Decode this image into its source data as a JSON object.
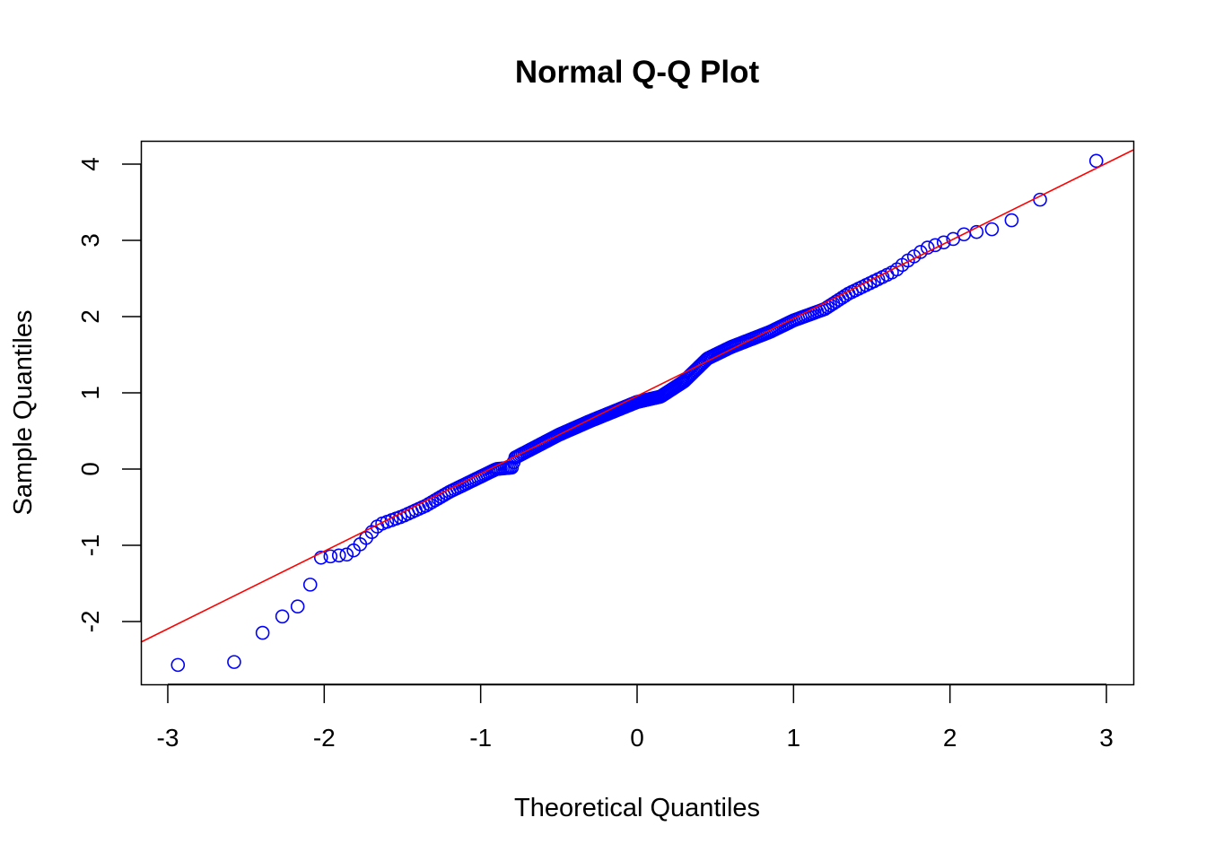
{
  "chart_data": {
    "type": "scatter",
    "title": "Normal Q-Q Plot",
    "xlabel": "Theoretical Quantiles",
    "ylabel": "Sample Quantiles",
    "xlim": [
      -3.172,
      3.172
    ],
    "ylim": [
      -2.824,
      4.306
    ],
    "xticks": [
      -3,
      -2,
      -1,
      0,
      1,
      2,
      3
    ],
    "xtick_labels": [
      "-3",
      "-2",
      "-1",
      "0",
      "1",
      "2",
      "3"
    ],
    "yticks": [
      -2,
      -1,
      0,
      1,
      2,
      3,
      4
    ],
    "ytick_labels": [
      "-2",
      "-1",
      "0",
      "1",
      "2",
      "3",
      "4"
    ],
    "n_points": 300,
    "point_color": "#0000ff",
    "line_color": "#ff0000",
    "reference_line": {
      "intercept": 0.958,
      "slope": 1.018
    },
    "sample_curve": [
      [
        -2.94,
        -2.57
      ],
      [
        -2.58,
        -2.54
      ],
      [
        -2.39,
        -2.14
      ],
      [
        -2.26,
        -1.92
      ],
      [
        -2.16,
        -1.79
      ],
      [
        -2.08,
        -1.48
      ],
      [
        -2.02,
        -1.16
      ],
      [
        -1.85,
        -1.12
      ],
      [
        -1.8,
        -1.05
      ],
      [
        -1.73,
        -0.9
      ],
      [
        -1.65,
        -0.73
      ],
      [
        -1.5,
        -0.62
      ],
      [
        -1.35,
        -0.48
      ],
      [
        -1.2,
        -0.3
      ],
      [
        -1.0,
        -0.1
      ],
      [
        -0.9,
        0.0
      ],
      [
        -0.8,
        0.02
      ],
      [
        -0.78,
        0.15
      ],
      [
        -0.5,
        0.45
      ],
      [
        -0.3,
        0.63
      ],
      [
        0.0,
        0.88
      ],
      [
        0.15,
        0.95
      ],
      [
        0.3,
        1.15
      ],
      [
        0.45,
        1.45
      ],
      [
        0.6,
        1.6
      ],
      [
        0.85,
        1.8
      ],
      [
        1.0,
        1.95
      ],
      [
        1.2,
        2.1
      ],
      [
        1.35,
        2.3
      ],
      [
        1.5,
        2.45
      ],
      [
        1.65,
        2.6
      ],
      [
        1.72,
        2.72
      ],
      [
        1.85,
        2.9
      ],
      [
        2.0,
        3.0
      ],
      [
        2.09,
        3.08
      ],
      [
        2.17,
        3.11
      ],
      [
        2.28,
        3.15
      ],
      [
        2.4,
        3.27
      ],
      [
        2.58,
        3.54
      ],
      [
        2.94,
        4.05
      ]
    ]
  }
}
